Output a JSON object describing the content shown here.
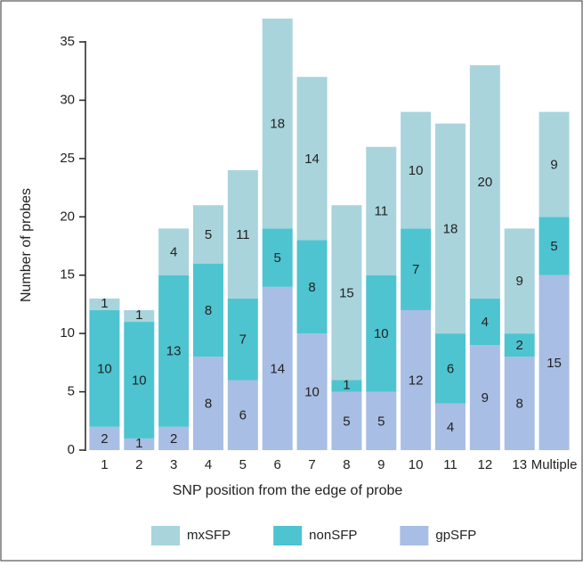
{
  "chart_data": {
    "type": "stacked-bar",
    "x_label": "SNP position from the edge of probe",
    "y_label": "Number of probes",
    "categories": [
      "1",
      "2",
      "3",
      "4",
      "5",
      "6",
      "7",
      "8",
      "9",
      "10",
      "11",
      "12",
      "13",
      "Multiple"
    ],
    "series": [
      {
        "name": "gpSFP",
        "color": "#a9bee4",
        "values": [
          2,
          1,
          2,
          8,
          6,
          14,
          10,
          5,
          5,
          12,
          4,
          9,
          8,
          15
        ]
      },
      {
        "name": "nonSFP",
        "color": "#4ec4d0",
        "values": [
          10,
          10,
          13,
          8,
          7,
          5,
          8,
          1,
          10,
          7,
          6,
          4,
          2,
          5
        ]
      },
      {
        "name": "mxSFP",
        "color": "#a9d4dc",
        "values": [
          1,
          1,
          4,
          5,
          11,
          18,
          14,
          15,
          11,
          10,
          18,
          20,
          9,
          9
        ]
      }
    ],
    "legend_order": [
      2,
      1,
      0
    ],
    "ylim": [
      0,
      35
    ],
    "yticks": [
      0,
      5,
      10,
      15,
      20,
      25,
      30,
      35
    ]
  }
}
